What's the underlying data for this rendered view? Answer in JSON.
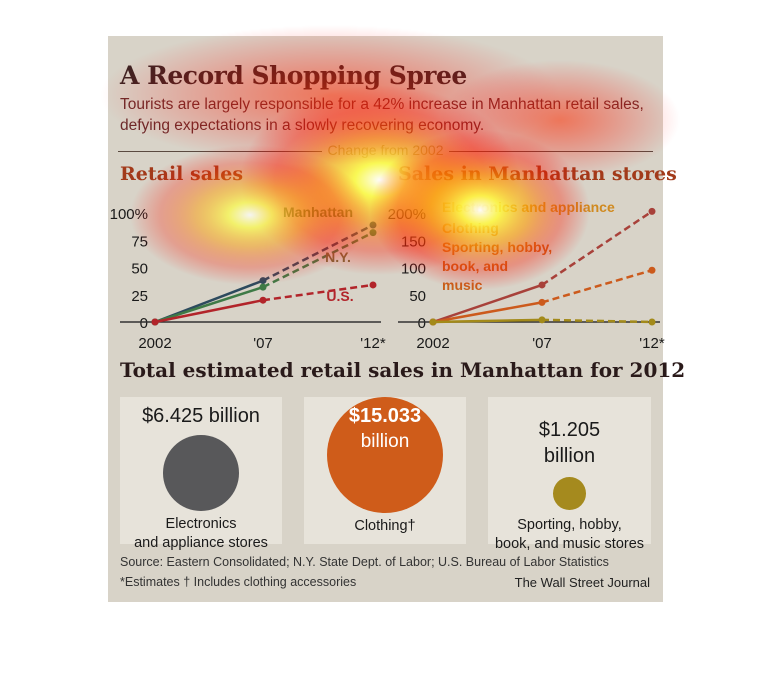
{
  "title": "A Record Shopping Spree",
  "subtitle": "Tourists are largely responsible for a 42% increase in Manhattan retail sales, defying expectations in a slowly recovering economy.",
  "change_label": "Change from 2002",
  "colors": {
    "manhattan": "#2d4a5e",
    "ny": "#3e7a46",
    "us": "#b2242a",
    "electronics": "#a8413a",
    "clothing": "#cc5a1c",
    "sporting": "#a38a1a",
    "bubble_elec": "#58585a",
    "bubble_cloth": "#cf5c1a",
    "bubble_sport": "#a58a1e"
  },
  "chart_data": [
    {
      "type": "line",
      "title": "Retail sales",
      "x": [
        "2002",
        "'07",
        "'12*"
      ],
      "yticks": [
        "100%",
        "75",
        "50",
        "25",
        "0"
      ],
      "ylim": [
        0,
        100
      ],
      "series": [
        {
          "name": "Manhattan",
          "values": [
            0,
            38,
            89
          ]
        },
        {
          "name": "N.Y.",
          "values": [
            0,
            32,
            82
          ]
        },
        {
          "name": "U.S.",
          "values": [
            0,
            20,
            34
          ]
        }
      ]
    },
    {
      "type": "line",
      "title": "Sales in Manhattan stores",
      "x": [
        "2002",
        "'07",
        "'12*"
      ],
      "yticks": [
        "200%",
        "150",
        "100",
        "50",
        "0"
      ],
      "ylim": [
        0,
        200
      ],
      "series": [
        {
          "name": "Electronics and appliance",
          "values": [
            0,
            68,
            203
          ]
        },
        {
          "name": "Clothing",
          "values": [
            0,
            36,
            95
          ]
        },
        {
          "name": "Sporting, hobby, book, and music",
          "values": [
            0,
            4,
            0
          ]
        }
      ]
    }
  ],
  "total_title": "Total estimated retail sales in Manhattan for 2012",
  "totals": [
    {
      "amount": "$6.425 billion",
      "label1": "Electronics",
      "label2": "and appliance stores",
      "value_billion": 6.425
    },
    {
      "amount1": "$15.033",
      "amount2": "billion",
      "label": "Clothing†",
      "value_billion": 15.033
    },
    {
      "amount1": "$1.205",
      "amount2": "billion",
      "label1": "Sporting, hobby,",
      "label2": "book, and music stores",
      "value_billion": 1.205
    }
  ],
  "source": "Source: Eastern Consolidated; N.Y. State Dept. of Labor; U.S. Bureau of Labor Statistics",
  "footnote": "*Estimates   † Includes clothing accessories",
  "credit": "The Wall Street Journal"
}
